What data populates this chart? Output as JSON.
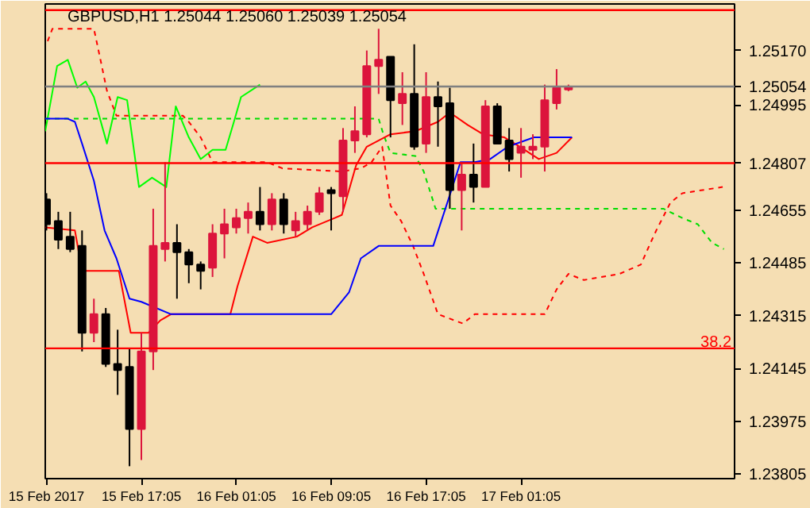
{
  "chart_data": {
    "type": "candlestick",
    "title": "GBPUSD,H1  1.25044 1.25060 1.25039 1.25054",
    "x": [
      "2017-02-15T09:05",
      "2017-02-15T10:05",
      "2017-02-15T11:05",
      "2017-02-15T12:05",
      "2017-02-15T13:05",
      "2017-02-15T14:05",
      "2017-02-15T15:05",
      "2017-02-15T16:05",
      "2017-02-15T17:05",
      "2017-02-15T18:05",
      "2017-02-15T19:05",
      "2017-02-15T20:05",
      "2017-02-15T21:05",
      "2017-02-15T22:05",
      "2017-02-15T23:05",
      "2017-02-16T00:05",
      "2017-02-16T01:05",
      "2017-02-16T02:05",
      "2017-02-16T03:05",
      "2017-02-16T04:05",
      "2017-02-16T05:05",
      "2017-02-16T06:05",
      "2017-02-16T07:05",
      "2017-02-16T08:05",
      "2017-02-16T09:05",
      "2017-02-16T10:05",
      "2017-02-16T11:05",
      "2017-02-16T12:05",
      "2017-02-16T13:05",
      "2017-02-16T14:05",
      "2017-02-16T15:05",
      "2017-02-16T16:05",
      "2017-02-16T17:05",
      "2017-02-16T18:05",
      "2017-02-16T19:05",
      "2017-02-16T20:05",
      "2017-02-16T21:05",
      "2017-02-16T22:05",
      "2017-02-16T23:05",
      "2017-02-17T00:05",
      "2017-02-17T01:05",
      "2017-02-17T02:05",
      "2017-02-17T03:05",
      "2017-02-17T04:05",
      "2017-02-17T05:05"
    ],
    "ohlc": [
      [
        1.2469,
        1.2471,
        1.2459,
        1.2461
      ],
      [
        1.2462,
        1.2465,
        1.2453,
        1.2456
      ],
      [
        1.2457,
        1.2465,
        1.2452,
        1.2453
      ],
      [
        1.2454,
        1.2459,
        1.242,
        1.2426
      ],
      [
        1.2426,
        1.2437,
        1.2423,
        1.2432
      ],
      [
        1.2432,
        1.2434,
        1.2415,
        1.2416
      ],
      [
        1.2416,
        1.2427,
        1.2406,
        1.2414
      ],
      [
        1.2415,
        1.2421,
        1.2383,
        1.2395
      ],
      [
        1.2395,
        1.2426,
        1.2385,
        1.242
      ],
      [
        1.242,
        1.2466,
        1.2414,
        1.2454
      ],
      [
        1.2453,
        1.2481,
        1.2449,
        1.2455
      ],
      [
        1.2455,
        1.2461,
        1.2437,
        1.2452
      ],
      [
        1.2452,
        1.2453,
        1.2442,
        1.2448
      ],
      [
        1.2448,
        1.2449,
        1.244,
        1.2446
      ],
      [
        1.2447,
        1.2461,
        1.2444,
        1.2458
      ],
      [
        1.2458,
        1.2466,
        1.245,
        1.2461
      ],
      [
        1.246,
        1.2466,
        1.2458,
        1.2463
      ],
      [
        1.2463,
        1.2468,
        1.2458,
        1.2465
      ],
      [
        1.2465,
        1.2473,
        1.2459,
        1.2461
      ],
      [
        1.2461,
        1.2471,
        1.2459,
        1.2469
      ],
      [
        1.2469,
        1.2471,
        1.2458,
        1.2461
      ],
      [
        1.2459,
        1.2465,
        1.2457,
        1.2462
      ],
      [
        1.2461,
        1.2467,
        1.2459,
        1.2465
      ],
      [
        1.2465,
        1.2473,
        1.2464,
        1.2471
      ],
      [
        1.2472,
        1.2473,
        1.2459,
        1.2471
      ],
      [
        1.247,
        1.2492,
        1.2465,
        1.2488
      ],
      [
        1.2488,
        1.2499,
        1.2484,
        1.2491
      ],
      [
        1.249,
        1.2517,
        1.2489,
        1.2512
      ],
      [
        1.2512,
        1.2524,
        1.2503,
        1.2514
      ],
      [
        1.2515,
        1.2515,
        1.2489,
        1.2501
      ],
      [
        1.25,
        1.251,
        1.2493,
        1.2503
      ],
      [
        1.2503,
        1.2519,
        1.2485,
        1.2486
      ],
      [
        1.2487,
        1.251,
        1.2484,
        1.2502
      ],
      [
        1.2502,
        1.2507,
        1.2486,
        1.2499
      ],
      [
        1.25,
        1.2505,
        1.2466,
        1.2472
      ],
      [
        1.2472,
        1.2481,
        1.2459,
        1.2477
      ],
      [
        1.2477,
        1.2487,
        1.2468,
        1.2473
      ],
      [
        1.2473,
        1.2501,
        1.2473,
        1.2499
      ],
      [
        1.2499,
        1.25,
        1.2487,
        1.2487
      ],
      [
        1.2488,
        1.2492,
        1.2478,
        1.2482
      ],
      [
        1.2484,
        1.2492,
        1.2476,
        1.2486
      ],
      [
        1.2485,
        1.249,
        1.2482,
        1.2486
      ],
      [
        1.2486,
        1.2506,
        1.2478,
        1.2501
      ],
      [
        1.25,
        1.2511,
        1.2498,
        1.2505
      ],
      [
        1.25044,
        1.2506,
        1.25039,
        1.25054
      ]
    ],
    "colors": [
      "#000000",
      "#000000",
      "#000000",
      "#000000",
      "#dc143c",
      "#000000",
      "#000000",
      "#000000",
      "#dc143c",
      "#dc143c",
      "#dc143c",
      "#000000",
      "#000000",
      "#000000",
      "#dc143c",
      "#dc143c",
      "#dc143c",
      "#dc143c",
      "#000000",
      "#dc143c",
      "#000000",
      "#dc143c",
      "#dc143c",
      "#dc143c",
      "#000000",
      "#dc143c",
      "#dc143c",
      "#dc143c",
      "#dc143c",
      "#000000",
      "#dc143c",
      "#000000",
      "#dc143c",
      "#000000",
      "#000000",
      "#dc143c",
      "#000000",
      "#dc143c",
      "#000000",
      "#000000",
      "#dc143c",
      "#dc143c",
      "#dc143c",
      "#dc143c",
      "#dc143c"
    ],
    "series": [
      {
        "type": "line",
        "color": "#ff0000",
        "line_style": "dashed",
        "x": [
          "2017-02-15T09:11",
          "2017-02-15T09:35",
          "2017-02-15T13:05",
          "2017-02-15T13:35",
          "2017-02-15T14:11",
          "2017-02-15T14:59",
          "2017-02-15T20:35",
          "2017-02-15T21:05",
          "2017-02-15T22:05",
          "2017-02-15T23:05",
          "2017-02-16T01:35",
          "2017-02-16T03:41",
          "2017-02-16T04:59",
          "2017-02-16T09:59",
          "2017-02-16T11:35",
          "2017-02-16T12:29",
          "2017-02-16T13:23",
          "2017-02-16T14:05",
          "2017-02-16T14:59",
          "2017-02-16T15:59",
          "2017-02-16T16:53",
          "2017-02-16T18:05",
          "2017-02-16T20:11",
          "2017-02-16T21:11",
          "2017-02-17T03:05",
          "2017-02-17T04:05",
          "2017-02-17T05:05",
          "2017-02-17T06:23",
          "2017-02-17T09:23",
          "2017-02-17T11:11",
          "2017-02-17T11:53",
          "2017-02-17T12:29",
          "2017-02-17T13:41",
          "2017-02-17T14:41",
          "2017-02-17T16:23",
          "2017-02-17T18:05"
        ],
        "values": [
          1.252,
          1.2524,
          1.2524,
          1.2515,
          1.2504,
          1.2496,
          1.2496,
          1.2494,
          1.2489,
          1.2481,
          1.2481,
          1.2481,
          1.2479,
          1.2478,
          1.2479,
          1.2481,
          1.2486,
          1.2467,
          1.2462,
          1.2454,
          1.2445,
          1.2432,
          1.2429,
          1.2432,
          1.2432,
          1.244,
          1.2445,
          1.2443,
          1.2445,
          1.2448,
          1.2454,
          1.2459,
          1.2468,
          1.2471,
          1.2472,
          1.2473
        ]
      },
      {
        "type": "line",
        "color": "#00dd00",
        "line_style": "dashed",
        "x": [
          "2017-02-15T08:59",
          "2017-02-16T13:05",
          "2017-02-16T13:29",
          "2017-02-16T14:05",
          "2017-02-16T16:11",
          "2017-02-16T16:53",
          "2017-02-16T17:53",
          "2017-02-17T13:05",
          "2017-02-17T14:41",
          "2017-02-17T15:59",
          "2017-02-17T17:11",
          "2017-02-17T18:11"
        ],
        "values": [
          1.2495,
          1.2495,
          1.249,
          1.2484,
          1.2483,
          1.2478,
          1.2466,
          1.2466,
          1.2463,
          1.2461,
          1.2455,
          1.2453
        ]
      },
      {
        "type": "line",
        "color": "#00ff00",
        "x": [
          "2017-02-15T08:59",
          "2017-02-15T09:59",
          "2017-02-15T10:53",
          "2017-02-15T11:41",
          "2017-02-15T12:23",
          "2017-02-15T13:05",
          "2017-02-15T14:11",
          "2017-02-15T15:05",
          "2017-02-15T15:53",
          "2017-02-15T16:53",
          "2017-02-15T17:59",
          "2017-02-15T19:11",
          "2017-02-15T19:59",
          "2017-02-15T21:05",
          "2017-02-15T22:05",
          "2017-02-15T23:05",
          "2017-02-16T00:11",
          "2017-02-16T00:53",
          "2017-02-16T01:29",
          "2017-02-16T03:05"
        ],
        "values": [
          1.2491,
          1.2512,
          1.2514,
          1.2505,
          1.2507,
          1.2502,
          1.2487,
          1.2502,
          1.2501,
          1.2473,
          1.2476,
          1.2473,
          1.2499,
          1.2489,
          1.2482,
          1.2485,
          1.2485,
          1.2494,
          1.2502,
          1.2506
        ]
      },
      {
        "type": "line",
        "color": "#ff0000",
        "x": [
          "2017-02-15T08:59",
          "2017-02-15T11:29",
          "2017-02-15T12:05",
          "2017-02-15T15:11",
          "2017-02-15T16:11",
          "2017-02-15T17:41",
          "2017-02-15T18:41",
          "2017-02-15T19:35",
          "2017-02-16T00:35",
          "2017-02-16T01:11",
          "2017-02-16T02:29",
          "2017-02-16T03:41",
          "2017-02-16T06:11",
          "2017-02-16T07:29",
          "2017-02-16T09:23",
          "2017-02-16T09:59",
          "2017-02-16T11:11",
          "2017-02-16T12:05",
          "2017-02-16T14:05",
          "2017-02-16T16:11",
          "2017-02-16T18:05",
          "2017-02-16T19:05",
          "2017-02-16T20:35",
          "2017-02-16T21:53",
          "2017-02-16T23:41",
          "2017-02-17T00:59",
          "2017-02-17T02:35",
          "2017-02-17T04:05",
          "2017-02-17T05:23"
        ],
        "values": [
          1.246,
          1.2459,
          1.2446,
          1.2446,
          1.2426,
          1.2426,
          1.243,
          1.2432,
          1.2432,
          1.2441,
          1.2457,
          1.2455,
          1.2457,
          1.246,
          1.2463,
          1.2464,
          1.248,
          1.2486,
          1.249,
          1.2491,
          1.2494,
          1.2497,
          1.2493,
          1.249,
          1.2489,
          1.2486,
          1.2482,
          1.2484,
          1.2489
        ]
      },
      {
        "type": "line",
        "color": "#0000ff",
        "x": [
          "2017-02-15T08:59",
          "2017-02-15T10:53",
          "2017-02-15T11:29",
          "2017-02-15T12:05",
          "2017-02-15T13:05",
          "2017-02-15T13:59",
          "2017-02-15T14:59",
          "2017-02-15T16:05",
          "2017-02-15T17:05",
          "2017-02-15T19:35",
          "2017-02-16T09:05",
          "2017-02-16T10:35",
          "2017-02-16T11:35",
          "2017-02-16T13:05",
          "2017-02-16T17:41",
          "2017-02-16T19:59",
          "2017-02-16T21:11",
          "2017-02-16T22:29",
          "2017-02-16T23:59",
          "2017-02-17T02:11",
          "2017-02-17T05:23"
        ],
        "values": [
          1.2495,
          1.2495,
          1.2494,
          1.2487,
          1.2475,
          1.2459,
          1.245,
          1.2437,
          1.2436,
          1.2432,
          1.2432,
          1.2439,
          1.245,
          1.2454,
          1.2454,
          1.2481,
          1.2481,
          1.2482,
          1.2486,
          1.2489,
          1.2489
        ]
      }
    ],
    "xlim": [
      "2017-02-15T08:59",
      "2017-02-17T19:05"
    ],
    "xticks": [
      {
        "value": "2017-02-15T09:05",
        "label": "15 Feb 2017"
      },
      {
        "value": "2017-02-15T17:05",
        "label": "15 Feb 17:05"
      },
      {
        "value": "2017-02-16T01:05",
        "label": "16 Feb 01:05"
      },
      {
        "value": "2017-02-16T09:05",
        "label": "16 Feb 09:05"
      },
      {
        "value": "2017-02-16T17:05",
        "label": "16 Feb 17:05"
      },
      {
        "value": "2017-02-17T01:05",
        "label": "17 Feb 01:05"
      }
    ],
    "ylim": [
      1.2379,
      1.2532
    ],
    "yticks": [
      {
        "value": 1.2517,
        "label": "1.25170"
      },
      {
        "value": 1.25054,
        "label": "1.25054"
      },
      {
        "value": 1.24995,
        "label": "1.24995"
      },
      {
        "value": 1.24807,
        "label": "1.24807"
      },
      {
        "value": 1.24655,
        "label": "1.24655"
      },
      {
        "value": 1.24485,
        "label": "1.24485"
      },
      {
        "value": 1.24315,
        "label": "1.24315"
      },
      {
        "value": 1.24145,
        "label": "1.24145"
      },
      {
        "value": 1.23975,
        "label": "1.23975"
      },
      {
        "value": 1.23805,
        "label": "1.23805"
      }
    ],
    "ref_lines": [
      {
        "axis": "y",
        "value": 1.25054,
        "color": "#808080"
      },
      {
        "axis": "y",
        "value": 1.24807,
        "color": "#ff0000"
      },
      {
        "axis": "y",
        "value": 1.253,
        "color": "#ff0000"
      },
      {
        "axis": "y",
        "value": 1.2421,
        "color": "#ff0000"
      }
    ],
    "annotations": [
      {
        "text": "38.2",
        "x": "2017-02-17T19:05",
        "y": 1.2421
      }
    ],
    "grid": false
  }
}
